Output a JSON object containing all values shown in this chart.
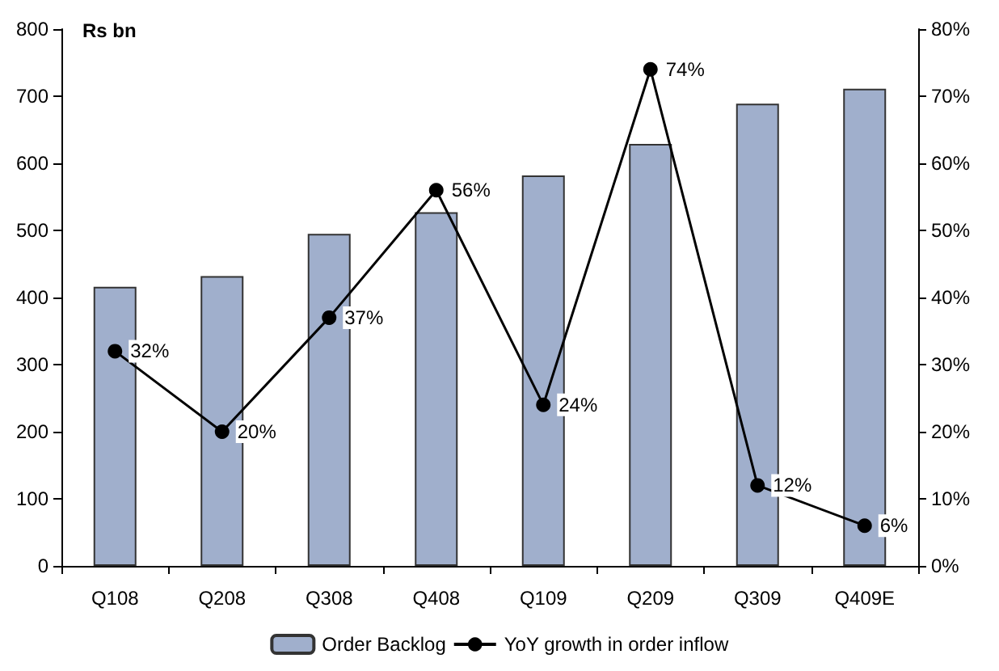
{
  "chart_data": {
    "type": "bar",
    "ylabel": "Rs bn",
    "categories": [
      "Q108",
      "Q208",
      "Q308",
      "Q408",
      "Q109",
      "Q209",
      "Q309",
      "Q409E"
    ],
    "series": [
      {
        "name": "Order Backlog",
        "color": "#a0afcc",
        "values": [
          416,
          432,
          495,
          527,
          582,
          629,
          689,
          711
        ]
      },
      {
        "name": "YoY growth in order inflow",
        "type": "line",
        "axis": "y2",
        "color": "#000000",
        "values": [
          32,
          20,
          37,
          56,
          24,
          74,
          12,
          6
        ],
        "value_labels": [
          "32%",
          "20%",
          "37%",
          "56%",
          "24%",
          "74%",
          "12%",
          "6%"
        ]
      }
    ],
    "ylim": [
      0,
      800
    ],
    "yticks": [
      0,
      100,
      200,
      300,
      400,
      500,
      600,
      700,
      800
    ],
    "y2lim": [
      0,
      80
    ],
    "y2ticks": [
      {
        "value": 0,
        "label": "0%"
      },
      {
        "value": 10,
        "label": "10%"
      },
      {
        "value": 20,
        "label": "20%"
      },
      {
        "value": 30,
        "label": "30%"
      },
      {
        "value": 40,
        "label": "40%"
      },
      {
        "value": 50,
        "label": "50%"
      },
      {
        "value": 60,
        "label": "60%"
      },
      {
        "value": 70,
        "label": "70%"
      },
      {
        "value": 80,
        "label": "80%"
      }
    ],
    "grid": false,
    "legend": "bottom",
    "marker": "circle",
    "line_style": "solid"
  }
}
